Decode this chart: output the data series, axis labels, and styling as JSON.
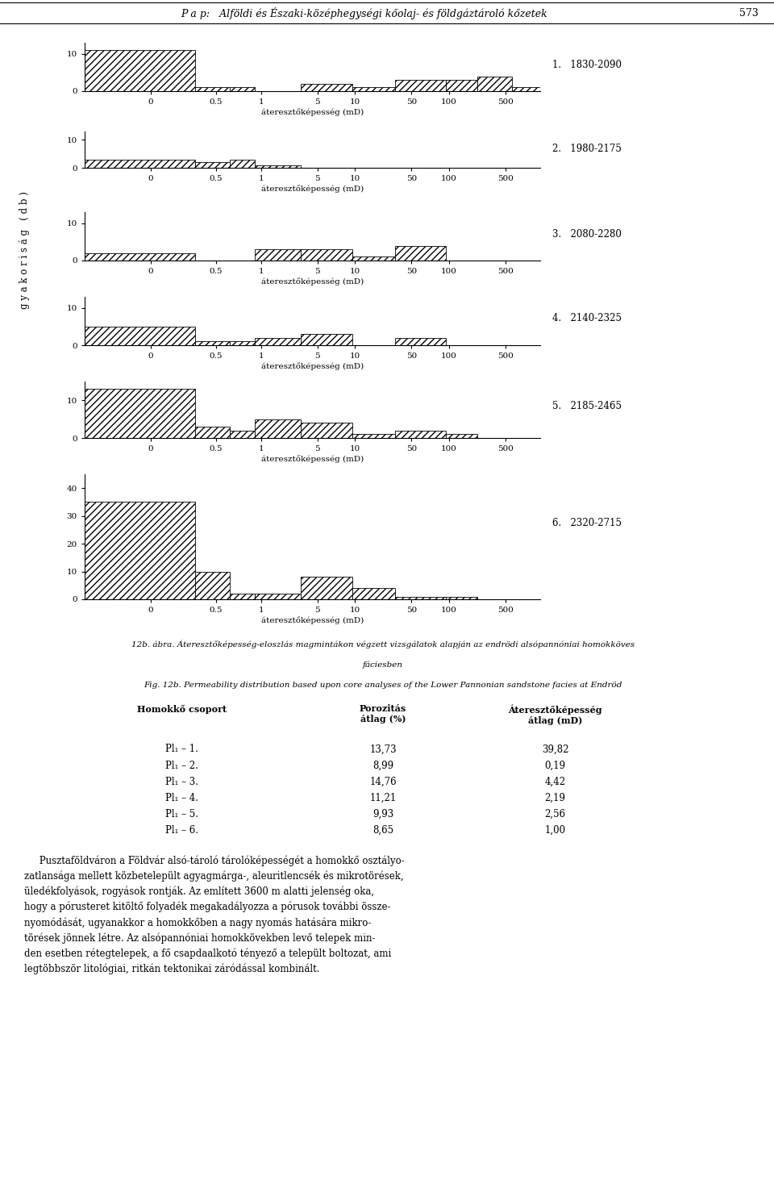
{
  "page_header": "P a p:   Alföldi és Északi-középhegységi kőolaj- és földgáztároló kőzetek",
  "page_num": "573",
  "subplot_labels": [
    "1.   1830-2090",
    "2.   1980-2175",
    "3.   2080-2280",
    "4.   2140-2325",
    "5.   2185-2465",
    "6.   2320-2715"
  ],
  "xlabel": "áteresztőképesség (mD)",
  "x_tick_vals": [
    0.05,
    0.25,
    0.75,
    3.0,
    7.5,
    30.0,
    75.0,
    300.0
  ],
  "x_tick_labels": [
    "0",
    "0.5",
    "1",
    "5",
    "10",
    "50",
    "100",
    "500"
  ],
  "bin_lefts": [
    0.01,
    0.15,
    0.35,
    0.65,
    2.0,
    7.0,
    20.0,
    70.0,
    150.0,
    350.0
  ],
  "bin_rights": [
    0.15,
    0.35,
    0.65,
    2.0,
    7.0,
    20.0,
    70.0,
    150.0,
    350.0,
    700.0
  ],
  "histograms": [
    {
      "ylim": [
        0,
        13
      ],
      "yticks": [
        0,
        10
      ],
      "bars": [
        11,
        1,
        1,
        0,
        2,
        1,
        3,
        3,
        4,
        1
      ]
    },
    {
      "ylim": [
        0,
        13
      ],
      "yticks": [
        0,
        10
      ],
      "bars": [
        3,
        2,
        3,
        1,
        0,
        0,
        0,
        0,
        0,
        0
      ]
    },
    {
      "ylim": [
        0,
        13
      ],
      "yticks": [
        0,
        10
      ],
      "bars": [
        2,
        0,
        0,
        3,
        3,
        1,
        4,
        0,
        0,
        0
      ]
    },
    {
      "ylim": [
        0,
        13
      ],
      "yticks": [
        0,
        10
      ],
      "bars": [
        5,
        1,
        1,
        2,
        3,
        0,
        2,
        0,
        0,
        0
      ]
    },
    {
      "ylim": [
        0,
        15
      ],
      "yticks": [
        0,
        10
      ],
      "bars": [
        13,
        3,
        2,
        5,
        4,
        1,
        2,
        1,
        0,
        0
      ]
    },
    {
      "ylim": [
        0,
        45
      ],
      "yticks": [
        0,
        10,
        20,
        30,
        40
      ],
      "bars": [
        35,
        10,
        2,
        2,
        8,
        4,
        1,
        1,
        0,
        0
      ]
    }
  ],
  "caption_it1": "12b. ábra. Áteresztőképesség-eloszlás magmintákon végzett vizsgálatok alapján az endrödi alsópannóniai homokköves",
  "caption_it2": "fáciesben",
  "caption_en": "Fig. 12b. Permeability distribution based upon core analyses of the Lower Pannonian sandstone facies at Endröd",
  "table_col1_header": "Homokkő csoport",
  "table_col2_header": "Porozitás\nátlag (%)",
  "table_col3_header": "Áteresztőképesség\nátlag (mD)",
  "table_rows": [
    [
      "Pl₁ – 1.",
      "13,73",
      "39,82"
    ],
    [
      "Pl₁ – 2.",
      "8,99",
      "0,19"
    ],
    [
      "Pl₁ – 3.",
      "14,76",
      "4,42"
    ],
    [
      "Pl₁ – 4.",
      "11,21",
      "2,19"
    ],
    [
      "Pl₁ – 5.",
      "9,93",
      "2,56"
    ],
    [
      "Pl₁ – 6.",
      "8,65",
      "1,00"
    ]
  ],
  "body_lines": [
    "     Pusztaföldváron a Földvár alsó-tároló tárolóképességét a homokkő osztályo-",
    "zatlansága mellett közbetelepült agyagmárga-, aleuritlencsék és mikrotörések,",
    "üledékfolyások, rogyások rontják. Az említett 3600 m alatti jelenség oka,",
    "hogy a pórusteret kitöltő folyadék megakadályozza a pórusok további össze-",
    "nyomódását, ugyanakkor a homokkőben a nagy nyomás hatására mikro-",
    "törések jönnek létre. Az alsópannóniai homokkövekben levő telepek min-",
    "den esetben rétegtelepek, a fő csapdaalkotó tényező a települt boltozat, ami",
    "legtöbbször litológiai, ritkán tektonikai záródással kombinált."
  ]
}
